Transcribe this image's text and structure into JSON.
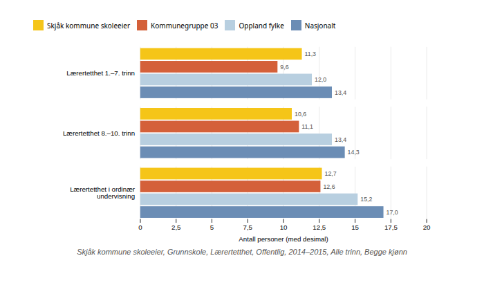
{
  "chart_data": {
    "type": "bar",
    "orientation": "horizontal",
    "categories": [
      "Lærertetthet 1.–7. trinn",
      "Lærertetthet 8.–10. trinn",
      "Lærertetthet i ordinær\nundervisning"
    ],
    "series": [
      {
        "name": "Skjåk kommune skoleeier",
        "color": "#f5c518",
        "values": [
          11.3,
          10.6,
          12.7
        ],
        "value_labels": [
          "11,3",
          "10,6",
          "12,7"
        ]
      },
      {
        "name": "Kommunegruppe 03",
        "color": "#d4603a",
        "values": [
          9.6,
          11.1,
          12.6
        ],
        "value_labels": [
          "9,6",
          "11,1",
          "12,6"
        ]
      },
      {
        "name": "Oppland fylke",
        "color": "#b8cfe0",
        "values": [
          12.0,
          13.4,
          15.2
        ],
        "value_labels": [
          "12,0",
          "13,4",
          "15,2"
        ]
      },
      {
        "name": "Nasjonalt",
        "color": "#6b8db5",
        "values": [
          13.4,
          14.3,
          17.0
        ],
        "value_labels": [
          "13,4",
          "14,3",
          "17,0"
        ]
      }
    ],
    "xlabel": "Antall personer (med desimal)",
    "xlim": [
      0,
      20
    ],
    "xticks": [
      0,
      {
        "value": 2.5,
        "label": "2,5"
      },
      5,
      {
        "value": 7.5,
        "label": "7,5"
      },
      10,
      {
        "value": 12.5,
        "label": "12,5"
      },
      15,
      {
        "value": 17.5,
        "label": "17,5"
      },
      20
    ],
    "caption": "Skjåk kommune skoleeier, Grunnskole, Lærertetthet, Offentlig, 2014–2015, Alle trinn, Begge kjønn",
    "grid": true,
    "legend": "upper left",
    "data_labels": true
  }
}
